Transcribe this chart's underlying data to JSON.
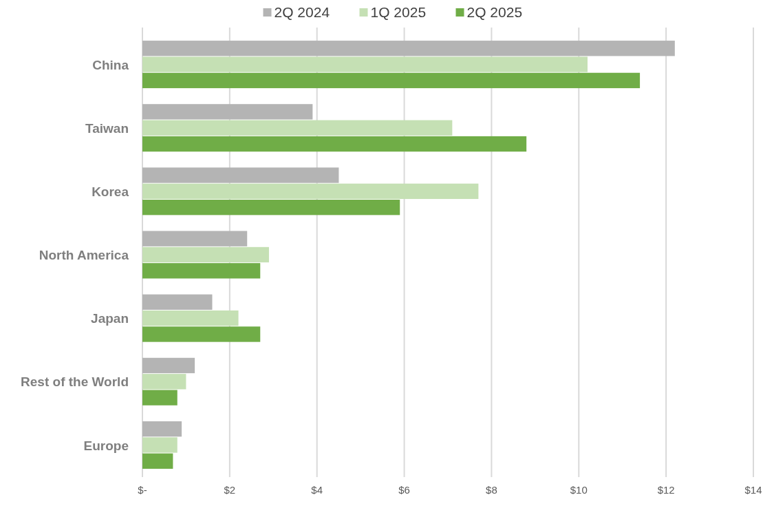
{
  "chart_data": {
    "type": "bar",
    "orientation": "horizontal",
    "categories": [
      "China",
      "Taiwan",
      "Korea",
      "North America",
      "Japan",
      "Rest of the World",
      "Europe"
    ],
    "series": [
      {
        "name": "2Q 2024",
        "color": "#b4b4b4",
        "values": [
          12.2,
          3.9,
          4.5,
          2.4,
          1.6,
          1.2,
          0.9
        ]
      },
      {
        "name": "1Q 2025",
        "color": "#c5e0b4",
        "values": [
          10.2,
          7.1,
          7.7,
          2.9,
          2.2,
          1.0,
          0.8
        ]
      },
      {
        "name": "2Q 2025",
        "color": "#70ad47",
        "values": [
          11.4,
          8.8,
          5.9,
          2.7,
          2.7,
          0.8,
          0.7
        ]
      }
    ],
    "xlim": [
      0,
      14
    ],
    "xticks": [
      {
        "value": 0,
        "label": "$-"
      },
      {
        "value": 2,
        "label": "$2"
      },
      {
        "value": 4,
        "label": "$4"
      },
      {
        "value": 6,
        "label": "$6"
      },
      {
        "value": 8,
        "label": "$8"
      },
      {
        "value": 10,
        "label": "$10"
      },
      {
        "value": 12,
        "label": "$12"
      },
      {
        "value": 14,
        "label": "$14"
      }
    ],
    "grid": "x",
    "legend": "top"
  }
}
